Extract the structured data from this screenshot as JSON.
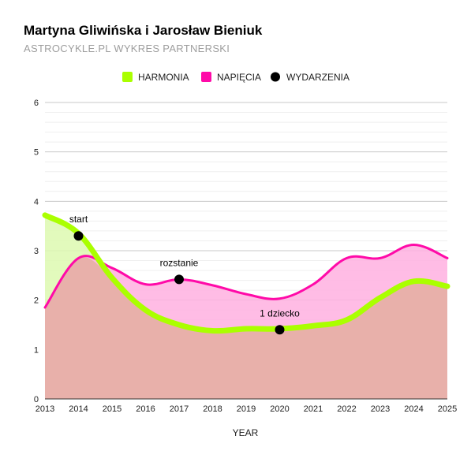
{
  "title": "Martyna Gliwińska i Jarosław Bieniuk",
  "subtitle": "ASTROCYKLE.PL WYKRES PARTNERSKI",
  "colors": {
    "harmonia": "#aaff00",
    "napiecia": "#ff0aa8",
    "wydarzenia": "#000000",
    "overlap_fill": "#e8b0aa",
    "harmonia_fill": "#ddf9b0",
    "napiecia_fill": "#ffb0e0"
  },
  "chart_data": {
    "type": "area",
    "x": [
      2013,
      2014,
      2015,
      2016,
      2017,
      2018,
      2019,
      2020,
      2021,
      2022,
      2023,
      2024,
      2025
    ],
    "xlabel": "YEAR",
    "ylabel": "",
    "ylim": [
      0,
      6
    ],
    "yticks": [
      0,
      1,
      2,
      3,
      4,
      5,
      6
    ],
    "grid": true,
    "legend_position": "top",
    "series": [
      {
        "name": "HARMONIA",
        "values": [
          3.72,
          3.35,
          2.45,
          1.8,
          1.5,
          1.38,
          1.42,
          1.42,
          1.48,
          1.6,
          2.05,
          2.38,
          2.28
        ]
      },
      {
        "name": "NAPIĘCIA",
        "values": [
          1.85,
          2.85,
          2.65,
          2.32,
          2.42,
          2.3,
          2.12,
          2.03,
          2.32,
          2.85,
          2.85,
          3.12,
          2.85
        ]
      }
    ],
    "events": {
      "name": "WYDARZENIA",
      "points": [
        {
          "x": 2014,
          "y": 3.3,
          "label": "start"
        },
        {
          "x": 2017,
          "y": 2.42,
          "label": "rozstanie"
        },
        {
          "x": 2020,
          "y": 1.4,
          "label": "1 dziecko"
        }
      ]
    }
  }
}
